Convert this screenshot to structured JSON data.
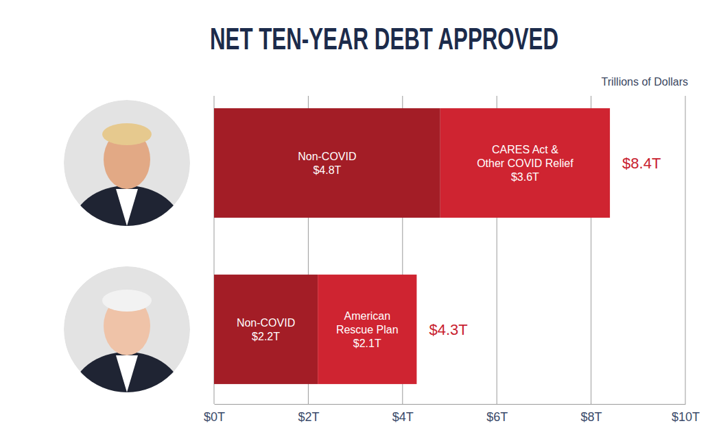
{
  "chart_data": {
    "type": "bar",
    "title": "NET TEN-YEAR DEBT APPROVED",
    "xlabel": "Trillions of Dollars",
    "orientation": "horizontal",
    "stacked": true,
    "data_labels": true,
    "grid": true,
    "tick_labels": "x",
    "categories": [
      null,
      null
    ],
    "series": [
      {
        "name": "Non-COVID",
        "color": "#a31d26",
        "values": [
          4.8,
          2.2
        ],
        "value_labels": [
          "$4.8T",
          "$2.2T"
        ]
      },
      {
        "name": "CARES Act & Other COVID Relief",
        "color": "#cf2431",
        "values": [
          3.6,
          null
        ],
        "value_labels": [
          "$3.6T",
          null
        ]
      },
      {
        "name": "American Rescue Plan",
        "color": "#cf2431",
        "values": [
          null,
          2.1
        ],
        "value_labels": [
          null,
          "$2.1T"
        ]
      }
    ],
    "totals": [
      8.4,
      4.3
    ],
    "total_labels": [
      "$8.4T",
      "$4.3T"
    ],
    "xlim": [
      0,
      10
    ],
    "xticks": [
      {
        "value": 0,
        "label": "$0T"
      },
      {
        "value": 2,
        "label": "$2T"
      },
      {
        "value": 4,
        "label": "$4T"
      },
      {
        "value": 6,
        "label": "$6T"
      },
      {
        "value": 8,
        "label": "$8T"
      },
      {
        "value": 10,
        "label": "$10T"
      }
    ]
  }
}
